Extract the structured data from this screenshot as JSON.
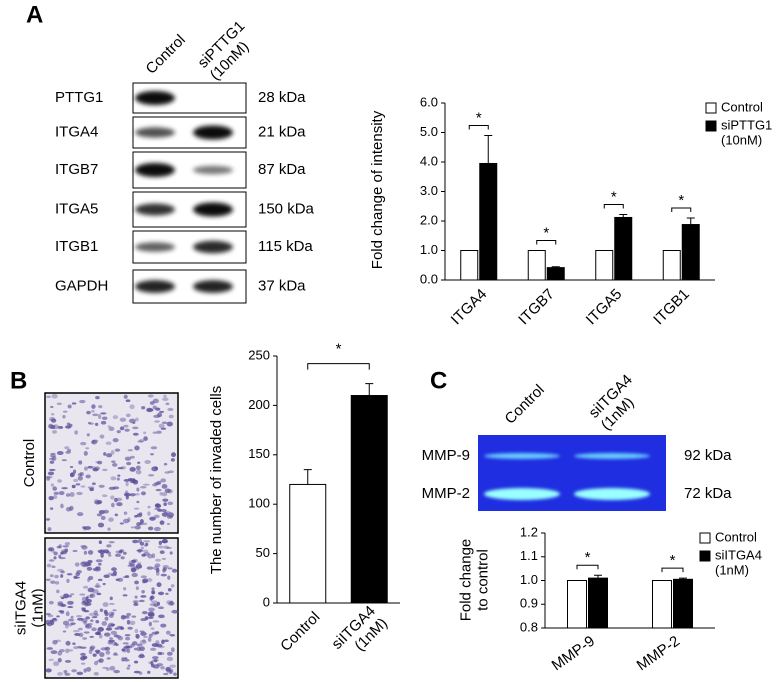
{
  "panel_labels": [
    "A",
    "B",
    "C"
  ],
  "blot_a": {
    "lanes": [
      "Control",
      "siPTTG1\n(10nM)"
    ],
    "rows": [
      {
        "protein": "PTTG1",
        "size": "28 kDa"
      },
      {
        "protein": "ITGA4",
        "size": "21 kDa"
      },
      {
        "protein": "ITGB7",
        "size": "87 kDa"
      },
      {
        "protein": "ITGA5",
        "size": "150 kDa"
      },
      {
        "protein": "ITGB1",
        "size": "115 kDa"
      },
      {
        "protein": "GAPDH",
        "size": "37 kDa"
      }
    ]
  },
  "micrographs_b": {
    "labels": [
      "Control",
      "siITGA4\n(1nM)"
    ]
  },
  "gel_c": {
    "lanes": [
      "Control",
      "siITGA4\n(1nM)"
    ],
    "rows": [
      {
        "protein": "MMP-9",
        "size": "92 kDa"
      },
      {
        "protein": "MMP-2",
        "size": "72 kDa"
      }
    ]
  },
  "chart_data": [
    {
      "type": "bar",
      "y_label": "Fold change of intensity",
      "categories": [
        "ITGA4",
        "ITGB7",
        "ITGA5",
        "ITGB1"
      ],
      "series": [
        {
          "name": "Control",
          "color": "#ffffff",
          "values": [
            1,
            1,
            1,
            1
          ]
        },
        {
          "name": "siPTTG1\n(10nM)",
          "color": "#000000",
          "values": [
            3.95,
            0.42,
            2.12,
            1.88
          ],
          "errors": [
            0.95,
            0.03,
            0.1,
            0.22
          ]
        }
      ],
      "significance": [
        "*",
        "*",
        "*",
        "*"
      ],
      "ylim": [
        0,
        6
      ],
      "yticks": [
        {
          "value": 0,
          "label": "0.0"
        },
        {
          "value": 1,
          "label": "1.0"
        },
        {
          "value": 2,
          "label": "2.0"
        },
        {
          "value": 3,
          "label": "3.0"
        },
        {
          "value": 4,
          "label": "4.0"
        },
        {
          "value": 5,
          "label": "5.0"
        },
        {
          "value": 6,
          "label": "6.0"
        }
      ]
    },
    {
      "type": "bar",
      "y_label": "The number of invaded cells",
      "categories": [
        "Control",
        "siITGA4\n(1nM)"
      ],
      "values": [
        120,
        210
      ],
      "errors": [
        15,
        12
      ],
      "colors": [
        "#ffffff",
        "#000000"
      ],
      "significance": [
        "*"
      ],
      "ylim": [
        0,
        250
      ],
      "yticks": [
        0,
        50,
        100,
        150,
        200,
        250
      ]
    },
    {
      "type": "bar",
      "y_label": "Fold change\nto control",
      "categories": [
        "MMP-9",
        "MMP-2"
      ],
      "series": [
        {
          "name": "Control",
          "color": "#ffffff",
          "values": [
            1.0,
            1.0
          ]
        },
        {
          "name": "siITGA4\n(1nM)",
          "color": "#000000",
          "values": [
            1.01,
            1.005
          ],
          "errors": [
            0.012,
            0.005
          ]
        }
      ],
      "significance": [
        "*",
        "*"
      ],
      "ylim": [
        0.8,
        1.2
      ],
      "yticks": [
        0.8,
        0.9,
        {
          "value": 1,
          "label": "1.0"
        },
        1.1,
        1.2
      ]
    }
  ]
}
